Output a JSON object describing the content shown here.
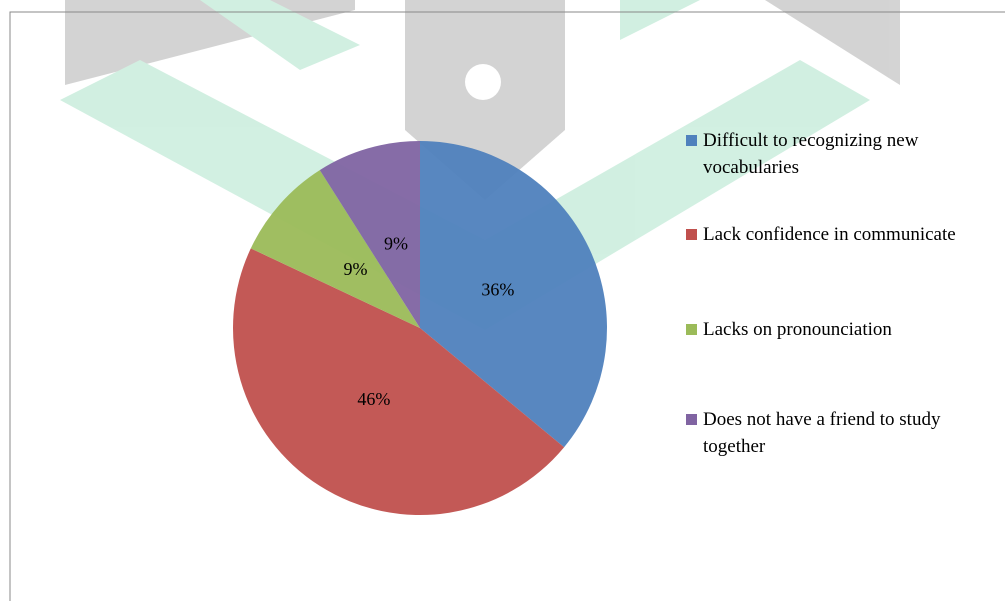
{
  "chart_data": {
    "type": "pie",
    "categories": [
      "Difficult to recognizing new vocabularies",
      "Lack confidence in communicate",
      "Lacks on pronounciation",
      "Does not have a friend to study together"
    ],
    "values": [
      36,
      46,
      9,
      9
    ],
    "value_labels": [
      "36%",
      "46%",
      "9%",
      "9%"
    ],
    "colors": [
      "#4f81bd",
      "#c0504d",
      "#9bbb59",
      "#8064a2"
    ],
    "legend": "right"
  }
}
